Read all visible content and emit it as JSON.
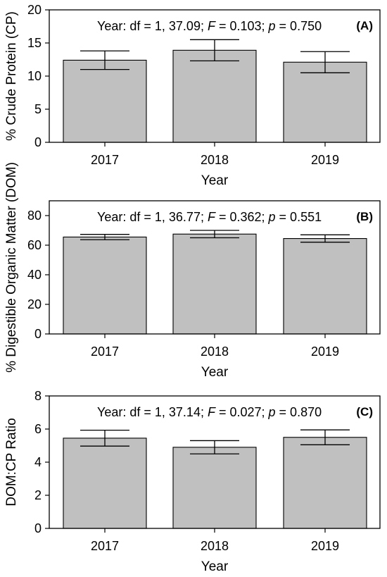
{
  "chart_data": [
    {
      "type": "bar",
      "panel_label": "(A)",
      "categories": [
        "2017",
        "2018",
        "2019"
      ],
      "values": [
        12.4,
        13.9,
        12.1
      ],
      "errors": [
        1.4,
        1.6,
        1.6
      ],
      "ylabel": "% Crude Protein (CP)",
      "xlabel": "Year",
      "ylim": [
        0,
        20
      ],
      "yticks": [
        "0",
        "5",
        "10",
        "15",
        "20"
      ],
      "annotation": {
        "prefix": "Year: df = 1, 37.09; ",
        "f_label": "F",
        "f_value": " = 0.103; ",
        "p_label": "p",
        "p_value": " = 0.750"
      }
    },
    {
      "type": "bar",
      "panel_label": "(B)",
      "categories": [
        "2017",
        "2018",
        "2019"
      ],
      "values": [
        65.5,
        67.5,
        64.5
      ],
      "errors": [
        1.8,
        2.5,
        2.5
      ],
      "ylabel": "% Digestible Organic Matter (DOM)",
      "xlabel": "Year",
      "ylim": [
        0,
        90
      ],
      "yticks": [
        "0",
        "20",
        "40",
        "60",
        "80"
      ],
      "annotation": {
        "prefix": "Year: df = 1, 36.77; ",
        "f_label": "F",
        "f_value": " = 0.362; ",
        "p_label": "p",
        "p_value": " = 0.551"
      }
    },
    {
      "type": "bar",
      "panel_label": "(C)",
      "categories": [
        "2017",
        "2018",
        "2019"
      ],
      "values": [
        5.45,
        4.9,
        5.5
      ],
      "errors": [
        0.48,
        0.4,
        0.45
      ],
      "ylabel": "DOM:CP Ratio",
      "xlabel": "Year",
      "ylim": [
        0,
        8
      ],
      "yticks": [
        "0",
        "2",
        "4",
        "6",
        "8"
      ],
      "annotation": {
        "prefix": "Year: df = 1, 37.14; ",
        "f_label": "F",
        "f_value": " = 0.027; ",
        "p_label": "p",
        "p_value": " = 0.870"
      }
    }
  ]
}
